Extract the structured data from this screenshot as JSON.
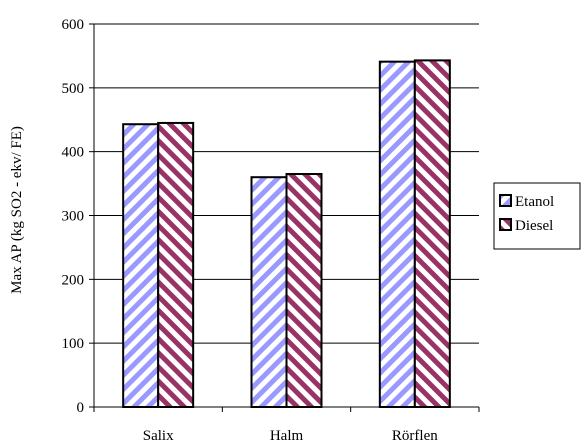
{
  "colors": {
    "etanol_stripe": "#9999ff",
    "diesel_stripe": "#993366",
    "bar_background": "#ffffff",
    "axis": "#000000"
  },
  "chart_data": {
    "type": "bar",
    "categories": [
      "Salix",
      "Halm",
      "Rörflen"
    ],
    "series": [
      {
        "name": "Etanol",
        "values": [
          443,
          360,
          541
        ],
        "pattern": "diagonal-stripes",
        "color": "#9999ff"
      },
      {
        "name": "Diesel",
        "values": [
          445,
          365,
          543
        ],
        "pattern": "diagonal-stripes",
        "color": "#993366"
      }
    ],
    "title": "",
    "xlabel": "",
    "ylabel": "Max AP (kg SO2 - ekv/ FE)",
    "ylim": [
      0,
      600
    ],
    "yticks": [
      0,
      100,
      200,
      300,
      400,
      500,
      600
    ],
    "grid": "horizontal",
    "legend_position": "right"
  }
}
